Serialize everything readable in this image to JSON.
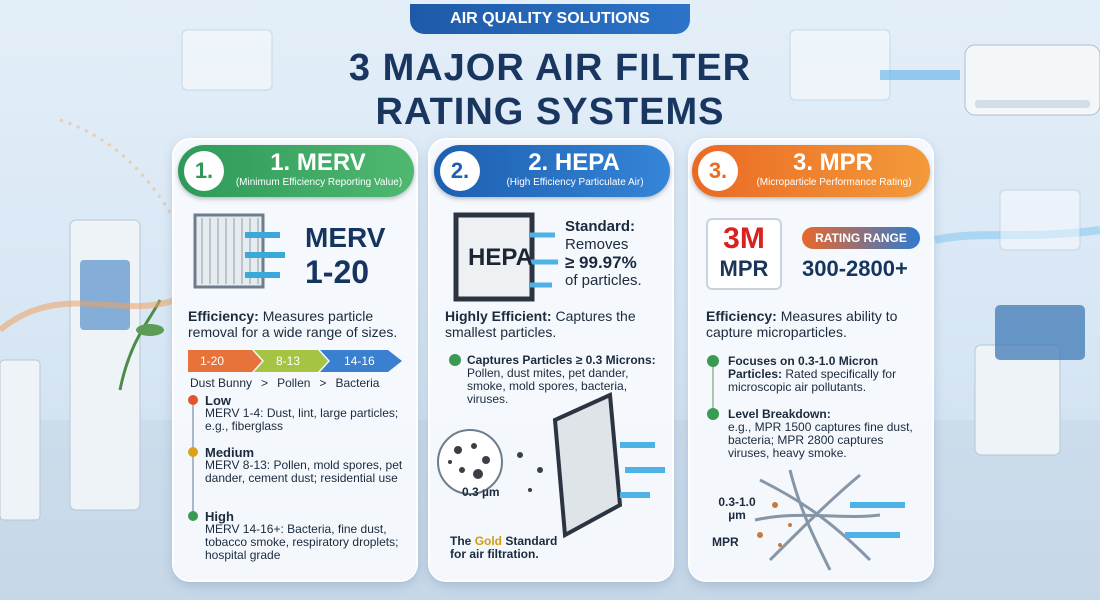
{
  "header": {
    "badge": "AIR QUALITY SOLUTIONS",
    "title_lines": [
      "3 MAJOR AIR FILTER",
      "RATING SYSTEMS"
    ]
  },
  "cards": [
    {
      "number": "1.",
      "title": "1. MERV",
      "subtitle": "(Minimum Efficiency Reporting Value)",
      "big_label": "MERV",
      "big_range": "1-20",
      "efficiency_label": "Efficiency:",
      "efficiency_text": "Measures particle removal for a wide range of sizes.",
      "scale": [
        "1-20",
        "8-13",
        "14-16"
      ],
      "scale_labels": [
        "Dust Bunny",
        ">",
        "Pollen",
        ">",
        "Bacteria"
      ],
      "levels": [
        {
          "name": "Low",
          "range": "MERV 1-4:",
          "text": "Dust, lint, large particles; e.g., fiberglass"
        },
        {
          "name": "Medium",
          "range": "MERV 8-13:",
          "text": "Pollen, mold spores, pet dander, cement dust; residential use"
        },
        {
          "name": "High",
          "range": "MERV 14-16+:",
          "text": "Bacteria, fine dust, tobacco smoke, respiratory droplets; hospital grade"
        }
      ]
    },
    {
      "number": "2.",
      "title": "2. HEPA",
      "subtitle": "(High Efficiency Particulate Air)",
      "filter_label": "HEPA",
      "standard_label": "Standard:",
      "standard_lines": [
        "Removes",
        "≥ 99.97%",
        "of particles."
      ],
      "efficiency_label": "Highly Efficient:",
      "efficiency_text": "Captures the smallest particles.",
      "bullet_label": "Captures Particles ≥ 0.3 Microns:",
      "bullet_text": "Pollen, dust mites, pet dander, smoke, mold spores, bacteria, viruses.",
      "particle_label": "0.3 µm",
      "footer": [
        "The",
        "Gold",
        "Standard",
        "for air filtration."
      ]
    },
    {
      "number": "3.",
      "title": "3. MPR",
      "subtitle": "(Microparticle Performance Rating)",
      "logo": [
        "3M",
        "MPR"
      ],
      "range_badge": "RATING RANGE",
      "range": "300-2800+",
      "efficiency_label": "Efficiency:",
      "efficiency_text": "Measures ability to capture microparticles.",
      "bullets": [
        {
          "label": "Focuses on 0.3-1.0 Micron Particles:",
          "text": "Rated specifically for microscopic air pollutants."
        },
        {
          "label": "Level Breakdown:",
          "text": "e.g., MPR 1500 captures fine dust, bacteria; MPR 2800 captures viruses, heavy smoke."
        }
      ],
      "diagram_labels": [
        "0.3-1.0 µm",
        "MPR"
      ]
    }
  ]
}
